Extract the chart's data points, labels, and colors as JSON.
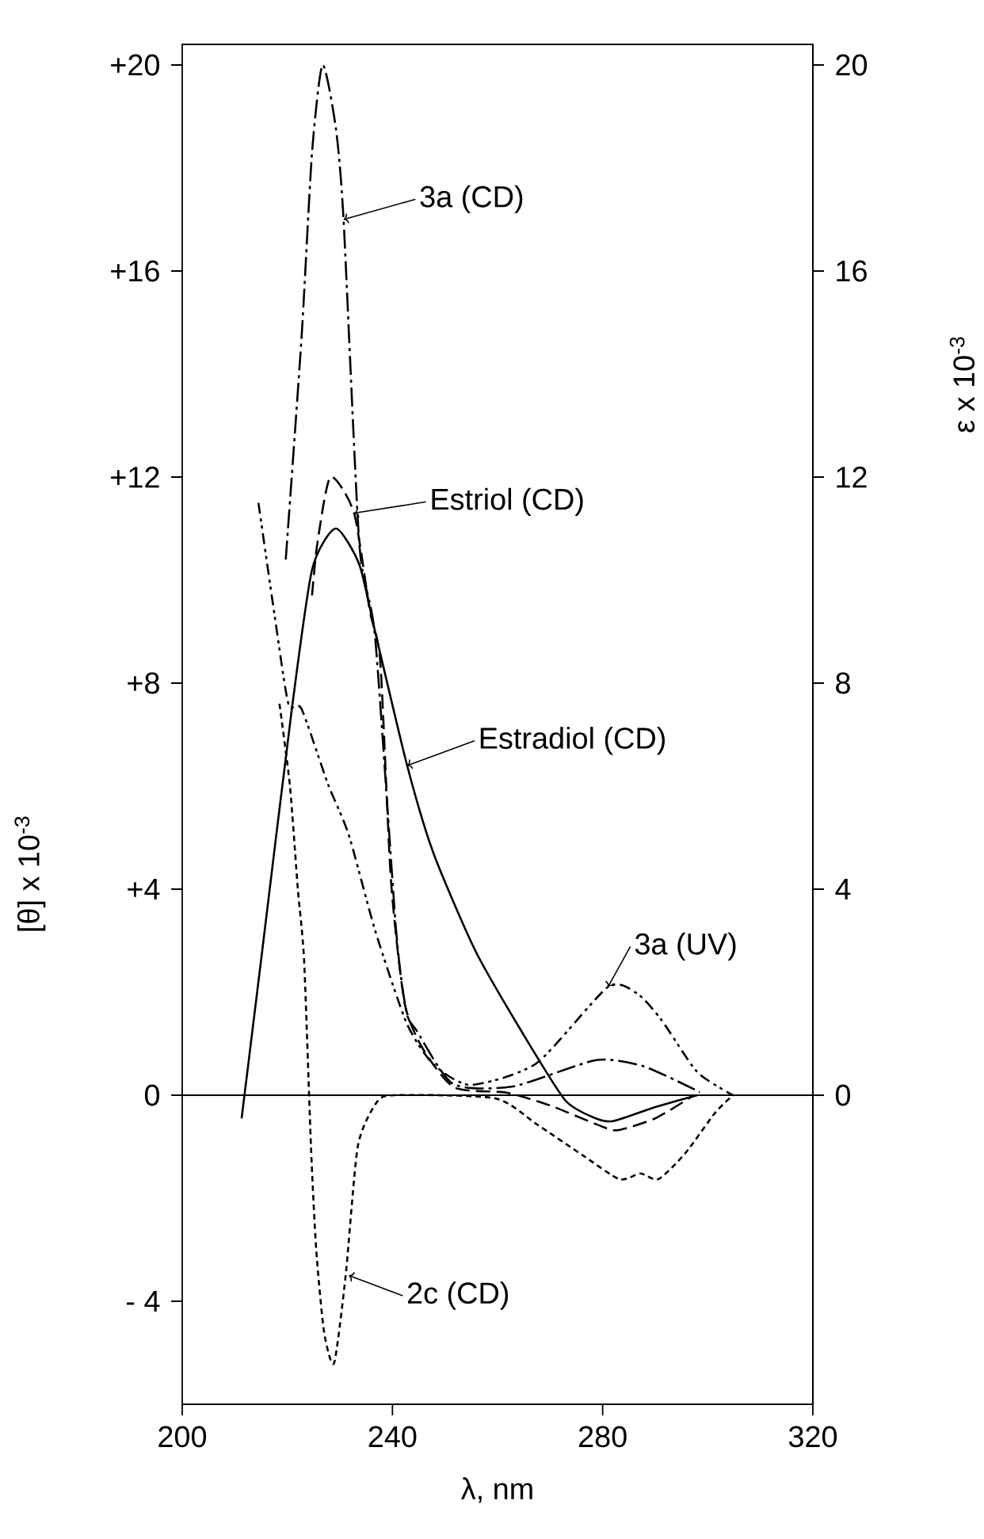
{
  "chart_data": {
    "type": "line",
    "xlabel": "λ, nm",
    "ylabel": "[θ] x 10$^{-3}$",
    "y2label": "ε x 10$^{-3}$",
    "xlim": [
      200,
      320
    ],
    "xticks": [
      200,
      240,
      280,
      320
    ],
    "ylim": [
      -6,
      20.4
    ],
    "yticks": [
      {
        "value": -4,
        "label": "- 4"
      },
      {
        "value": 0,
        "label": "0"
      },
      {
        "value": 4,
        "label": "+4"
      },
      {
        "value": 8,
        "label": "+8"
      },
      {
        "value": 12,
        "label": "+12"
      },
      {
        "value": 16,
        "label": "+16"
      },
      {
        "value": 20,
        "label": "+20"
      }
    ],
    "y2lim": [
      -6,
      20.4
    ],
    "y2ticks": [
      0,
      4,
      8,
      12,
      16,
      20
    ],
    "ref_lines": [
      {
        "axis": "y",
        "value": 0,
        "color": "#000000"
      }
    ],
    "series": [
      {
        "color": "#000000",
        "line_style": "solid",
        "x": [
          211.3,
          215.1,
          220.8,
          224.7,
          229.2,
          233.7,
          236.7,
          242.8,
          247.8,
          255.8,
          264.8,
          272.9,
          278.7,
          282.1,
          290,
          298
        ],
        "values": [
          -0.45,
          2.7,
          7.45,
          10.2,
          11.0,
          10.3,
          9.0,
          6.4,
          4.7,
          2.8,
          1.2,
          -0.1,
          -0.45,
          -0.5,
          -0.23,
          0
        ]
      },
      {
        "color": "#000000",
        "line_style": "dashed",
        "x": [
          224.7,
          225.7,
          228.2,
          232.7,
          235.7,
          237.7,
          239.7,
          242.3,
          245.8,
          251.8,
          261.7,
          270,
          278.7,
          282.7,
          290,
          297.4
        ],
        "values": [
          9.7,
          10.7,
          12.0,
          11.3,
          9.4,
          8.4,
          4.2,
          1.8,
          0.9,
          0.15,
          0.05,
          -0.2,
          -0.56,
          -0.68,
          -0.45,
          0
        ]
      },
      {
        "color": "#000000",
        "line_style": "dashdot",
        "x": [
          219.7,
          222.7,
          224.7,
          226.7,
          229.2,
          230.7,
          233.7,
          236.7,
          240.7,
          242.7,
          244.7,
          251.5,
          262.9,
          278.7,
          287.8,
          298.5
        ],
        "values": [
          10.4,
          14.7,
          18.3,
          20.0,
          18.8,
          17.0,
          10.7,
          8.9,
          3.2,
          1.6,
          1.24,
          0.22,
          0.17,
          0.68,
          0.56,
          0.06
        ]
      },
      {
        "color": "#000000",
        "line_style": "dashdotdot",
        "x": [
          214.5,
          217.6,
          220.2,
          222.7,
          227.7,
          231.7,
          236.7,
          242.7,
          247.8,
          254.9,
          267.4,
          281,
          286.6,
          291.2,
          298,
          304.8
        ],
        "values": [
          11.5,
          9.3,
          7.6,
          7.5,
          6.05,
          5.05,
          3.2,
          1.4,
          0.6,
          0.2,
          0.62,
          2.1,
          1.97,
          1.46,
          0.45,
          0
        ]
      },
      {
        "color": "#000000",
        "line_style": "dotted",
        "x": [
          218.5,
          220.5,
          222,
          223.2,
          224.5,
          225.5,
          227,
          228.9,
          231.1,
          233.4,
          236.8,
          240.2,
          259.5,
          267.4,
          276.4,
          283.2,
          287.2,
          290.6,
          295.7,
          301.4,
          304.8
        ],
        "values": [
          7.6,
          6.0,
          4.0,
          2.6,
          -1.0,
          -3.0,
          -4.6,
          -5.2,
          -3.5,
          -1.0,
          -0.17,
          0,
          -0.06,
          -0.56,
          -1.18,
          -1.63,
          -1.52,
          -1.63,
          -1.13,
          -0.34,
          0
        ]
      }
    ],
    "annotations": [
      {
        "text": "3a (CD)",
        "x": 230.7,
        "y": 17.0
      },
      {
        "text": "Estriol (CD)",
        "x": 232.7,
        "y": 11.3
      },
      {
        "text": "Estradiol (CD)",
        "x": 242.8,
        "y": 6.4
      },
      {
        "text": "3a (UV)",
        "x": 281,
        "y": 2.1
      },
      {
        "text": "2c (CD)",
        "x": 231.7,
        "y": -3.5
      }
    ]
  }
}
